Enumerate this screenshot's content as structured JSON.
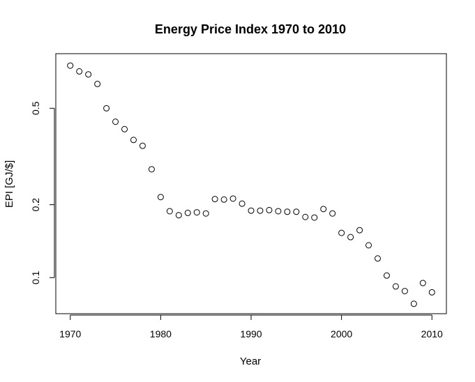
{
  "chart_data": {
    "type": "scatter",
    "title": "Energy Price Index 1970 to 2010",
    "xlabel": "Year",
    "ylabel": "EPI [GJ/$]",
    "x_scale": "linear",
    "y_scale": "log",
    "xlim": [
      1968.4,
      2011.6
    ],
    "ylim": [
      0.071,
      0.84
    ],
    "x_ticks": [
      1970,
      1980,
      1990,
      2000,
      2010
    ],
    "x_tick_labels": [
      "1970",
      "1980",
      "1990",
      "2000",
      "2010"
    ],
    "y_ticks": [
      0.1,
      0.2,
      0.5
    ],
    "y_tick_labels": [
      "0.1",
      "0.2",
      "0.5"
    ],
    "grid": false,
    "marker": "open-circle",
    "marker_color": "#000000",
    "x": [
      1970,
      1971,
      1972,
      1973,
      1974,
      1975,
      1976,
      1977,
      1978,
      1979,
      1980,
      1981,
      1982,
      1983,
      1984,
      1985,
      1986,
      1987,
      1988,
      1989,
      1990,
      1991,
      1992,
      1993,
      1994,
      1995,
      1996,
      1997,
      1998,
      1999,
      2000,
      2001,
      2002,
      2003,
      2004,
      2005,
      2006,
      2007,
      2008,
      2009,
      2010
    ],
    "y": [
      0.75,
      0.71,
      0.69,
      0.63,
      0.5,
      0.44,
      0.41,
      0.37,
      0.35,
      0.28,
      0.215,
      0.188,
      0.181,
      0.185,
      0.186,
      0.184,
      0.211,
      0.21,
      0.212,
      0.202,
      0.189,
      0.189,
      0.19,
      0.188,
      0.187,
      0.187,
      0.178,
      0.177,
      0.192,
      0.184,
      0.153,
      0.147,
      0.157,
      0.136,
      0.12,
      0.102,
      0.092,
      0.088,
      0.078,
      0.095,
      0.087
    ]
  }
}
